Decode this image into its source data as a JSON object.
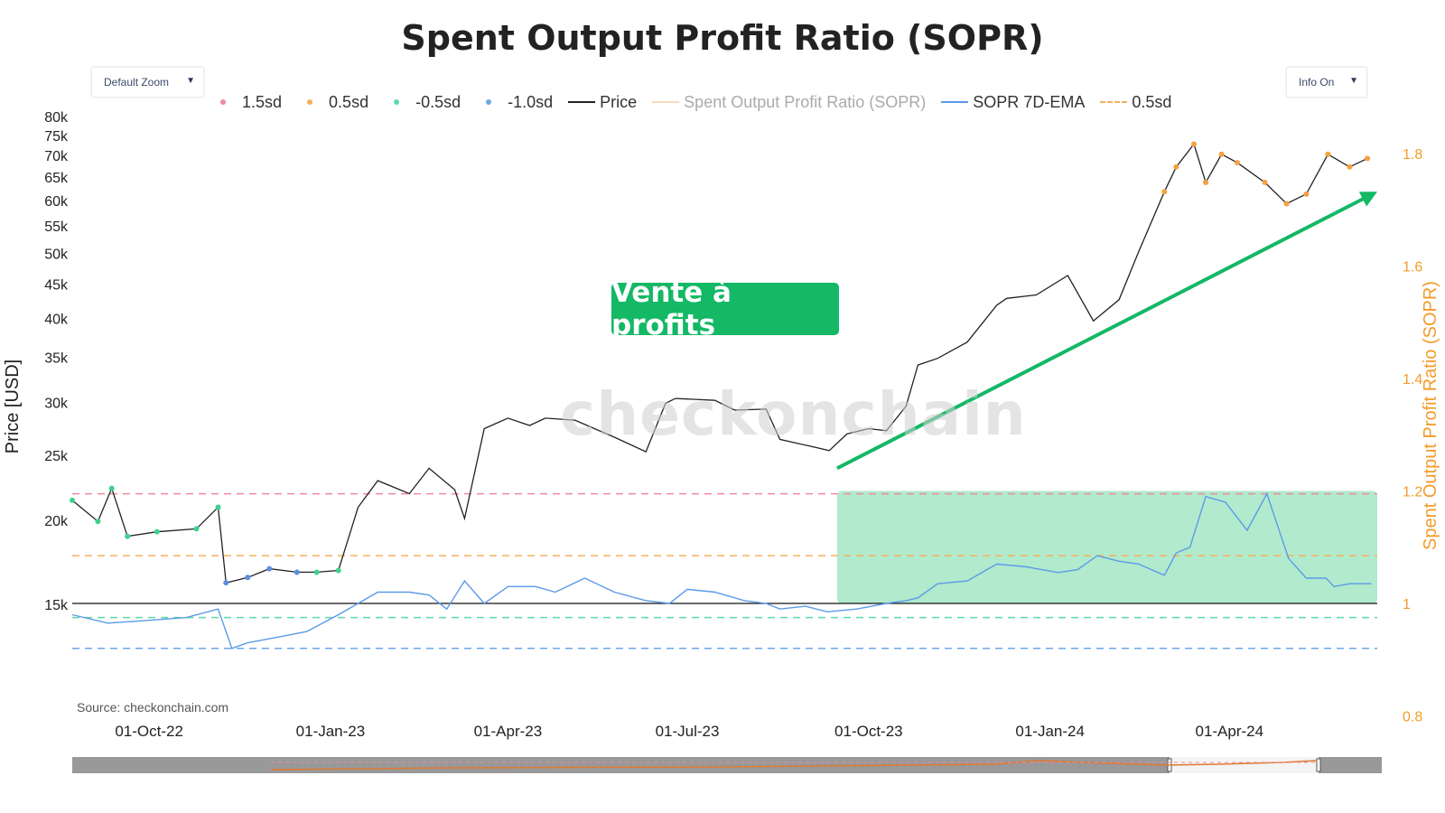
{
  "title": "Spent Output Profit Ratio (SOPR)",
  "controls": {
    "zoom_label": "Default Zoom",
    "info_label": "Info On",
    "arrow": "▼"
  },
  "annotation": "Vente à profits",
  "watermark": "checkonchain",
  "source": "Source: checkonchain.com",
  "legend": [
    {
      "label": "1.5sd",
      "kind": "dot",
      "color": "#f08aa0"
    },
    {
      "label": "0.5sd",
      "kind": "dot",
      "color": "#f5b060"
    },
    {
      "label": "-0.5sd",
      "kind": "dot",
      "color": "#5ed9a8"
    },
    {
      "label": "-1.0sd",
      "kind": "dot",
      "color": "#6aa8e8"
    },
    {
      "label": "Price",
      "kind": "line",
      "color": "#222222"
    },
    {
      "label": "Spent Output Profit Ratio (SOPR)",
      "kind": "line",
      "color": "#f7dcc0",
      "faded": true
    },
    {
      "label": "SOPR 7D-EMA",
      "kind": "line",
      "color": "#5b9be8"
    },
    {
      "label": "0.5sd",
      "kind": "dashed",
      "color": "#f5b060"
    }
  ],
  "chart_data": {
    "type": "line",
    "title": "Spent Output Profit Ratio (SOPR)",
    "y_left": {
      "label": "Price [USD]",
      "scale": "log",
      "ticks": [
        "15k",
        "20k",
        "25k",
        "30k",
        "35k",
        "40k",
        "45k",
        "50k",
        "55k",
        "60k",
        "65k",
        "70k",
        "75k",
        "80k"
      ],
      "tick_values": [
        15000,
        20000,
        25000,
        30000,
        35000,
        40000,
        45000,
        50000,
        55000,
        60000,
        65000,
        70000,
        75000,
        80000
      ]
    },
    "y_right": {
      "label": "Spent Output Profit Ratio (SOPR)",
      "ticks": [
        "0.8",
        "1",
        "1.2",
        "1.4",
        "1.6",
        "1.8"
      ],
      "tick_values": [
        0.8,
        1.0,
        1.2,
        1.4,
        1.6,
        1.8
      ]
    },
    "x_ticks": [
      "01-Oct-22",
      "01-Jan-23",
      "01-Apr-23",
      "01-Jul-23",
      "01-Oct-23",
      "01-Jan-24",
      "01-Apr-24"
    ],
    "x_range": [
      "2022-08-23",
      "2024-06-15"
    ],
    "reference_lines": [
      {
        "name": "1.5sd",
        "sopr": 1.195,
        "color": "#f08aa0"
      },
      {
        "name": "0.5sd",
        "sopr": 1.085,
        "color": "#f5b060"
      },
      {
        "name": "-0.5sd",
        "sopr": 0.975,
        "color": "#5ed9a8"
      },
      {
        "name": "-1.0sd",
        "sopr": 0.92,
        "color": "#6aa8e8"
      }
    ],
    "series": [
      {
        "name": "Price",
        "color": "#222222",
        "dates": [
          "2022-08-23",
          "2022-09-05",
          "2022-09-12",
          "2022-09-20",
          "2022-10-05",
          "2022-10-25",
          "2022-11-05",
          "2022-11-09",
          "2022-11-20",
          "2022-12-01",
          "2022-12-15",
          "2022-12-25",
          "2023-01-05",
          "2023-01-15",
          "2023-01-25",
          "2023-02-10",
          "2023-02-20",
          "2023-03-05",
          "2023-03-10",
          "2023-03-20",
          "2023-04-01",
          "2023-04-12",
          "2023-04-20",
          "2023-05-05",
          "2023-05-25",
          "2023-06-10",
          "2023-06-20",
          "2023-06-25",
          "2023-07-05",
          "2023-07-15",
          "2023-07-25",
          "2023-08-10",
          "2023-08-17",
          "2023-09-01",
          "2023-09-11",
          "2023-09-20",
          "2023-10-01",
          "2023-10-10",
          "2023-10-20",
          "2023-10-26",
          "2023-11-05",
          "2023-11-20",
          "2023-12-05",
          "2023-12-10",
          "2023-12-25",
          "2024-01-10",
          "2024-01-23",
          "2024-02-05",
          "2024-02-15",
          "2024-02-28",
          "2024-03-05",
          "2024-03-14",
          "2024-03-20",
          "2024-03-28",
          "2024-04-05",
          "2024-04-19",
          "2024-04-30",
          "2024-05-10",
          "2024-05-21",
          "2024-06-01",
          "2024-06-10"
        ],
        "values": [
          21500,
          20000,
          22400,
          19000,
          19300,
          19500,
          21000,
          16200,
          16500,
          17000,
          16800,
          16800,
          16900,
          21000,
          23000,
          22000,
          24000,
          22300,
          20200,
          27500,
          28500,
          27800,
          28500,
          28300,
          26700,
          25400,
          30000,
          30500,
          30400,
          30300,
          29300,
          29400,
          26500,
          25900,
          25500,
          27000,
          27500,
          27300,
          29700,
          34200,
          35000,
          37000,
          42000,
          43000,
          43500,
          46500,
          39800,
          42800,
          50500,
          62000,
          67500,
          73000,
          64000,
          70500,
          68500,
          64000,
          59500,
          61500,
          70500,
          67500,
          69500
        ]
      },
      {
        "name": "SOPR 7D-EMA",
        "color": "#5b9be8",
        "dates": [
          "2022-08-23",
          "2022-09-10",
          "2022-10-01",
          "2022-10-20",
          "2022-11-05",
          "2022-11-12",
          "2022-11-20",
          "2022-12-05",
          "2022-12-20",
          "2023-01-05",
          "2023-01-15",
          "2023-01-25",
          "2023-02-10",
          "2023-02-20",
          "2023-03-01",
          "2023-03-10",
          "2023-03-20",
          "2023-04-01",
          "2023-04-15",
          "2023-04-25",
          "2023-05-10",
          "2023-05-25",
          "2023-06-10",
          "2023-06-22",
          "2023-07-01",
          "2023-07-15",
          "2023-07-30",
          "2023-08-10",
          "2023-08-17",
          "2023-08-30",
          "2023-09-10",
          "2023-09-25",
          "2023-10-10",
          "2023-10-20",
          "2023-10-26",
          "2023-11-05",
          "2023-11-20",
          "2023-12-05",
          "2023-12-20",
          "2024-01-05",
          "2024-01-15",
          "2024-01-25",
          "2024-02-05",
          "2024-02-15",
          "2024-02-28",
          "2024-03-05",
          "2024-03-12",
          "2024-03-20",
          "2024-03-30",
          "2024-04-10",
          "2024-04-20",
          "2024-05-01",
          "2024-05-10",
          "2024-05-20",
          "2024-05-24",
          "2024-06-01",
          "2024-06-12"
        ],
        "values": [
          0.98,
          0.965,
          0.97,
          0.975,
          0.99,
          0.92,
          0.93,
          0.94,
          0.95,
          0.98,
          1.0,
          1.02,
          1.02,
          1.015,
          0.99,
          1.04,
          1.0,
          1.03,
          1.03,
          1.02,
          1.045,
          1.02,
          1.005,
          1.0,
          1.025,
          1.02,
          1.005,
          1.0,
          0.99,
          0.995,
          0.985,
          0.99,
          1.0,
          1.005,
          1.01,
          1.035,
          1.04,
          1.07,
          1.065,
          1.055,
          1.06,
          1.085,
          1.075,
          1.07,
          1.05,
          1.09,
          1.1,
          1.19,
          1.18,
          1.13,
          1.195,
          1.08,
          1.045,
          1.045,
          1.03,
          1.035,
          1.035
        ]
      }
    ],
    "highlight_region": {
      "from": "2023-09-15",
      "to": "2024-06-15",
      "sopr_from": 1.0,
      "sopr_to": 1.2,
      "color": "#7ddcac"
    },
    "trend_arrow": {
      "from_date": "2023-09-15",
      "from_price": 24000,
      "to_date": "2024-06-15",
      "to_price": 62000,
      "color": "#14b865"
    }
  }
}
